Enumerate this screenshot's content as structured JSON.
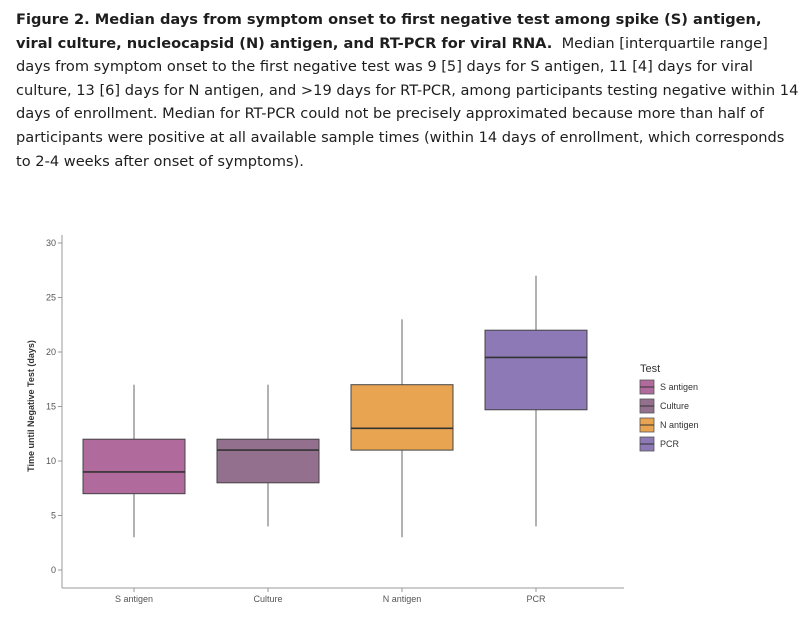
{
  "caption": {
    "title": "Figure 2.  Median days from symptom onset to first negative test among spike (S) antigen, viral culture, nucleocapsid (N) antigen, and RT-PCR for viral RNA.",
    "body": "Median [interquartile range] days from symptom onset to the first negative test was 9 [5] days for S antigen, 11 [4] days for viral culture, 13 [6] days for N antigen, and >19 days for RT-PCR, among participants testing negative within 14 days of enrollment. Median for RT-PCR could not be precisely approximated because more than half of participants were positive at all available sample times (within 14 days of enrollment, which corresponds to 2-4 weeks after onset of symptoms)."
  },
  "chart_data": {
    "type": "boxplot",
    "title": "",
    "xlabel": "",
    "ylabel": "Time until Negative Test (days)",
    "ylim": [
      0,
      30
    ],
    "yticks": [
      0,
      5,
      10,
      15,
      20,
      25,
      30
    ],
    "grid": false,
    "legend": {
      "title": "Test",
      "position": "right",
      "entries": [
        "S antigen",
        "Culture",
        "N antigen",
        "PCR"
      ]
    },
    "categories": [
      "S antigen",
      "Culture",
      "N antigen",
      "PCR"
    ],
    "boxes": [
      {
        "name": "S antigen",
        "min": 3,
        "q1": 7,
        "median": 9,
        "q3": 12,
        "max": 17,
        "color": "#b06a9c"
      },
      {
        "name": "Culture",
        "min": 4,
        "q1": 8,
        "median": 11,
        "q3": 12,
        "max": 17,
        "color": "#94708f"
      },
      {
        "name": "N antigen",
        "min": 3,
        "q1": 11,
        "median": 13,
        "q3": 17,
        "max": 23,
        "color": "#e8a450"
      },
      {
        "name": "PCR",
        "min": 4,
        "q1": 14.7,
        "median": 19.5,
        "q3": 22,
        "max": 27,
        "color": "#8d79b5"
      }
    ]
  }
}
